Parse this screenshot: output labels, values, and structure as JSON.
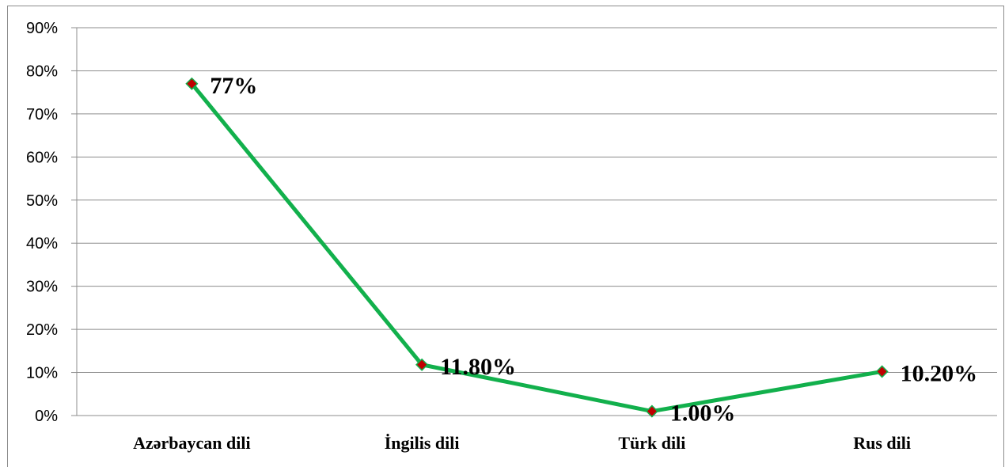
{
  "chart_data": {
    "type": "line",
    "title": "",
    "xlabel": "",
    "ylabel": "",
    "categories": [
      "Azərbaycan dili",
      "İngilis dili",
      "Türk dili",
      "Rus dili"
    ],
    "values": [
      77,
      11.8,
      1.0,
      10.2
    ],
    "data_labels": [
      "77%",
      "11.80%",
      "1.00%",
      "10.20%"
    ],
    "ylim": [
      0,
      90
    ],
    "yticks": [
      0,
      10,
      20,
      30,
      40,
      50,
      60,
      70,
      80,
      90
    ],
    "ytick_labels": [
      "0%",
      "10%",
      "20%",
      "30%",
      "40%",
      "50%",
      "60%",
      "70%",
      "80%",
      "90%"
    ],
    "grid": true,
    "legend": "none",
    "colors": {
      "line": "#12b04c",
      "marker_fill": "#c00000",
      "marker_stroke": "#12b04c",
      "grid": "#8c8c8c"
    }
  }
}
